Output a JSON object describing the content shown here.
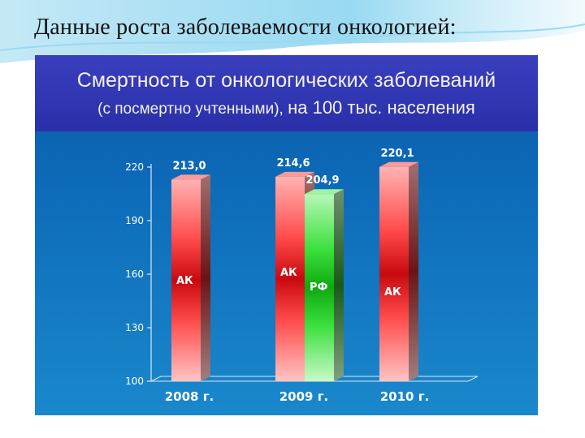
{
  "slide": {
    "title": "Данные роста заболеваемости онкологией:"
  },
  "chart_header": {
    "line1": "Смертность от онкологических заболеваний",
    "line2_part1": "(с посмертно учтенными), ",
    "line2_part2": "на 100 тыс. населения"
  },
  "colors": {
    "red_series": "#e8202a",
    "green_series": "#2ed12e",
    "panel_bg": "#0d6ab8",
    "header_bg": "#3a3fbf"
  },
  "chart_data": {
    "type": "bar",
    "categories": [
      "2008 г.",
      "2009 г.",
      "2010 г."
    ],
    "ylim": [
      100,
      220
    ],
    "yticks": [
      100,
      130,
      160,
      190,
      220
    ],
    "grid": false,
    "bars": [
      {
        "category": "2008 г.",
        "series": "АК",
        "value": 213.0,
        "value_label": "213,0",
        "color": "red"
      },
      {
        "category": "2009 г.",
        "series": "АК",
        "value": 214.6,
        "value_label": "214,6",
        "color": "red"
      },
      {
        "category": "2009 г.",
        "series": "РФ",
        "value": 204.9,
        "value_label": "204,9",
        "color": "green"
      },
      {
        "category": "2010 г.",
        "series": "АК",
        "value": 220.1,
        "value_label": "220,1",
        "color": "red"
      }
    ]
  }
}
